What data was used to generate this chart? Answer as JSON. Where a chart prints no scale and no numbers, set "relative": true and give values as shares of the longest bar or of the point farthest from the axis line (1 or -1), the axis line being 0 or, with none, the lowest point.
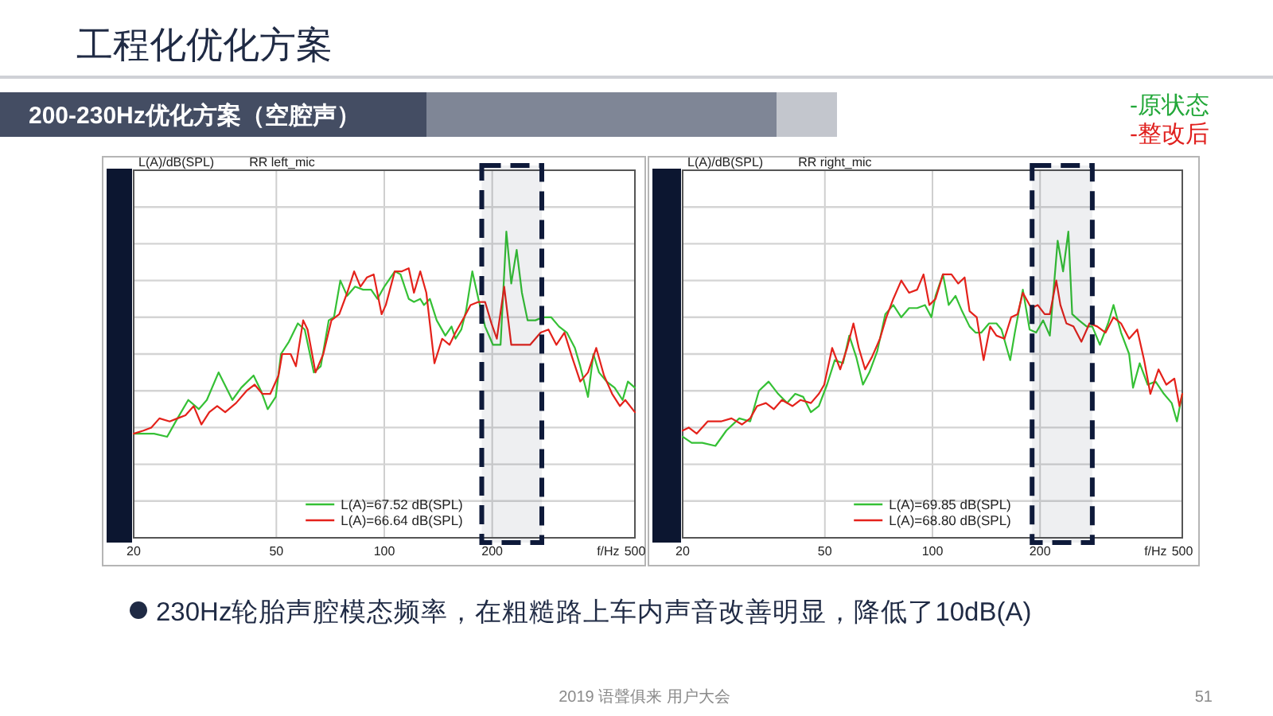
{
  "chart_data": [
    {
      "type": "other",
      "title": "工程化优化方案",
      "subtitle": "200-230Hz优化方案（空腔声）",
      "series": [
        {
          "name": "-原状态",
          "color": "#23a83a"
        },
        {
          "name": "-整改后",
          "color": "#e0201e"
        }
      ],
      "annotations": [
        "230Hz轮胎声腔模态频率，在粗糙路上车内声音改善明显，降低了10dB(A)",
        "2019 语聲俱来 用户大会",
        "51"
      ]
    },
    {
      "type": "line",
      "title": "RR left_mic",
      "ylabel": "L(A)/dB(SPL)",
      "xlabel": "f/Hz",
      "log": "x",
      "xlim": [
        20,
        500
      ],
      "xticks": [
        20,
        50,
        100,
        200,
        500
      ],
      "relative": true,
      "grid": true,
      "legend": "bottom",
      "tick_labels": "x",
      "bands": [
        {
          "axis": "x",
          "from": 187,
          "to": 275,
          "color": "#0e1a3a"
        }
      ],
      "series": [
        {
          "name": "L(A)=67.52 dB(SPL)",
          "color": "#35c035",
          "x": [
            20,
            21.3,
            22.8,
            24.8,
            26.5,
            28.4,
            30.4,
            32.0,
            34.5,
            37.7,
            39.9,
            43.2,
            45.3,
            47.3,
            49.8,
            51.5,
            54.2,
            57.4,
            60.0,
            63.6,
            66.5,
            70.0,
            72.4,
            75.4,
            78.8,
            82.9,
            87.3,
            91.9,
            95.7,
            100,
            107,
            111,
            117,
            121,
            126,
            129,
            134,
            140,
            148,
            154,
            158,
            164,
            169,
            176,
            183,
            191,
            201,
            211,
            219,
            226,
            234,
            242,
            251,
            264,
            277,
            292,
            307,
            323,
            340,
            352,
            370,
            383,
            397,
            417,
            439,
            462,
            478,
            500
          ],
          "values": [
            0.34,
            0.34,
            0.34,
            0.33,
            0.39,
            0.45,
            0.42,
            0.45,
            0.54,
            0.45,
            0.49,
            0.53,
            0.48,
            0.42,
            0.46,
            0.6,
            0.64,
            0.7,
            0.68,
            0.54,
            0.56,
            0.71,
            0.72,
            0.84,
            0.79,
            0.82,
            0.81,
            0.81,
            0.78,
            0.82,
            0.87,
            0.86,
            0.78,
            0.77,
            0.78,
            0.76,
            0.78,
            0.71,
            0.66,
            0.69,
            0.65,
            0.68,
            0.74,
            0.87,
            0.78,
            0.69,
            0.63,
            0.63,
            1,
            0.83,
            0.94,
            0.8,
            0.71,
            0.71,
            0.72,
            0.72,
            0.69,
            0.67,
            0.62,
            0.56,
            0.46,
            0.6,
            0.54,
            0.51,
            0.49,
            0.45,
            0.51,
            0.49
          ]
        },
        {
          "name": "L(A)=66.64 dB(SPL)",
          "color": "#e4221b",
          "x": [
            20,
            21.3,
            22.4,
            23.6,
            25.2,
            26.5,
            27.9,
            29.4,
            30.9,
            32.5,
            34.2,
            36.0,
            38.6,
            41.3,
            43.5,
            45.7,
            48.1,
            50.7,
            51.9,
            54.8,
            56.7,
            59.4,
            61.1,
            64.3,
            67.6,
            71.2,
            74.9,
            78.8,
            82.4,
            85.8,
            89.4,
            93.4,
            98.3,
            101,
            107,
            112,
            117,
            121,
            126,
            131,
            138,
            145,
            152,
            158,
            167,
            174,
            183,
            191,
            199,
            206,
            216,
            226,
            238,
            255,
            273,
            287,
            302,
            318,
            334,
            352,
            370,
            390,
            410,
            432,
            454,
            470,
            500
          ],
          "values": [
            0.34,
            0.35,
            0.36,
            0.39,
            0.38,
            0.39,
            0.4,
            0.43,
            0.37,
            0.41,
            0.43,
            0.41,
            0.44,
            0.48,
            0.5,
            0.47,
            0.47,
            0.53,
            0.6,
            0.6,
            0.56,
            0.71,
            0.68,
            0.54,
            0.6,
            0.71,
            0.73,
            0.8,
            0.87,
            0.82,
            0.85,
            0.86,
            0.73,
            0.76,
            0.87,
            0.87,
            0.88,
            0.8,
            0.87,
            0.8,
            0.57,
            0.65,
            0.63,
            0.67,
            0.72,
            0.76,
            0.77,
            0.77,
            0.7,
            0.65,
            0.82,
            0.63,
            0.63,
            0.63,
            0.67,
            0.68,
            0.63,
            0.67,
            0.59,
            0.51,
            0.54,
            0.62,
            0.53,
            0.47,
            0.43,
            0.45,
            0.41
          ]
        }
      ]
    },
    {
      "type": "line",
      "title": "RR right_mic",
      "ylabel": "L(A)/dB(SPL)",
      "xlabel": "f/Hz",
      "log": "x",
      "xlim": [
        20,
        500
      ],
      "xticks": [
        20,
        50,
        100,
        200,
        500
      ],
      "relative": true,
      "grid": true,
      "legend": "bottom",
      "tick_labels": "x",
      "bands": [
        {
          "axis": "x",
          "from": 190,
          "to": 280,
          "color": "#0e1a3a"
        }
      ],
      "series": [
        {
          "name": "L(A)=69.85 dB(SPL)",
          "color": "#35c035",
          "x": [
            20,
            21.2,
            22.7,
            24.7,
            26.5,
            28.8,
            30.9,
            32.7,
            34.8,
            37.0,
            39.2,
            41.3,
            43.5,
            45.7,
            48.1,
            50.7,
            53.3,
            56.2,
            58.5,
            61.2,
            63.9,
            66.6,
            70.1,
            73.8,
            77.7,
            81.8,
            86.0,
            90.6,
            95.3,
            99.3,
            102,
            107,
            111,
            116,
            121,
            127,
            132,
            137,
            144,
            151,
            156,
            165,
            170,
            179,
            187,
            195,
            204,
            213,
            224,
            232,
            240,
            246,
            257,
            270,
            280,
            294,
            310,
            321,
            337,
            355,
            364,
            380,
            400,
            421,
            444,
            467,
            483,
            500
          ],
          "values": [
            0.33,
            0.31,
            0.31,
            0.3,
            0.35,
            0.39,
            0.38,
            0.48,
            0.51,
            0.47,
            0.44,
            0.47,
            0.46,
            0.41,
            0.43,
            0.5,
            0.58,
            0.57,
            0.66,
            0.59,
            0.5,
            0.54,
            0.61,
            0.73,
            0.76,
            0.72,
            0.75,
            0.75,
            0.76,
            0.72,
            0.79,
            0.86,
            0.76,
            0.79,
            0.74,
            0.69,
            0.67,
            0.67,
            0.7,
            0.7,
            0.68,
            0.58,
            0.67,
            0.81,
            0.68,
            0.67,
            0.71,
            0.66,
            0.97,
            0.87,
            1,
            0.73,
            0.71,
            0.69,
            0.69,
            0.63,
            0.7,
            0.76,
            0.67,
            0.6,
            0.49,
            0.57,
            0.5,
            0.51,
            0.47,
            0.44,
            0.38,
            0.47
          ]
        },
        {
          "name": "L(A)=68.80 dB(SPL)",
          "color": "#e4221b",
          "x": [
            20,
            20.8,
            21.9,
            23.5,
            25.6,
            27.4,
            29.3,
            30.9,
            32.3,
            34.2,
            36.0,
            37.9,
            40.6,
            42.7,
            45.7,
            48.1,
            49.8,
            52.4,
            55.2,
            57.7,
            60.1,
            62.2,
            64.8,
            67.7,
            71.3,
            74.3,
            77.7,
            81.8,
            86.0,
            90.6,
            94.4,
            98.0,
            102,
            107,
            113,
            118,
            123,
            127,
            133,
            139,
            145,
            151,
            159,
            166,
            173,
            179,
            189,
            197,
            206,
            213,
            222,
            228,
            237,
            248,
            261,
            275,
            289,
            305,
            321,
            337,
            355,
            374,
            391,
            407,
            429,
            451,
            475,
            491,
            500
          ],
          "values": [
            0.35,
            0.36,
            0.34,
            0.38,
            0.38,
            0.39,
            0.37,
            0.39,
            0.43,
            0.44,
            0.42,
            0.45,
            0.43,
            0.45,
            0.44,
            0.47,
            0.5,
            0.62,
            0.55,
            0.62,
            0.7,
            0.62,
            0.55,
            0.59,
            0.65,
            0.72,
            0.78,
            0.84,
            0.8,
            0.81,
            0.86,
            0.76,
            0.78,
            0.86,
            0.86,
            0.83,
            0.85,
            0.74,
            0.72,
            0.58,
            0.69,
            0.66,
            0.65,
            0.72,
            0.73,
            0.8,
            0.75,
            0.76,
            0.73,
            0.73,
            0.84,
            0.76,
            0.7,
            0.69,
            0.64,
            0.7,
            0.69,
            0.67,
            0.72,
            0.7,
            0.65,
            0.68,
            0.58,
            0.47,
            0.55,
            0.5,
            0.52,
            0.43,
            0.47
          ]
        }
      ]
    }
  ]
}
